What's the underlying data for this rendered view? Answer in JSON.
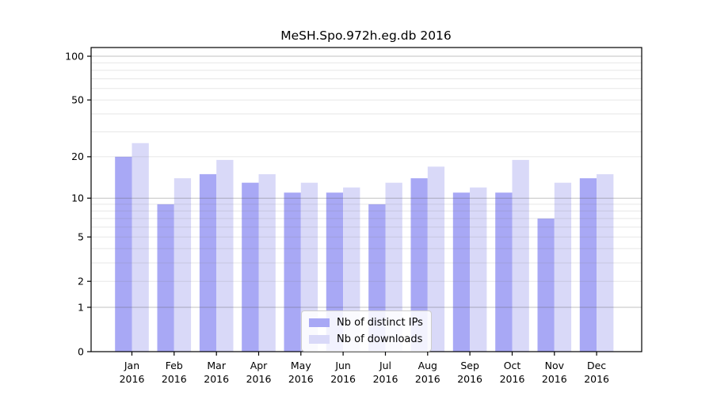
{
  "chart_data": {
    "type": "bar",
    "title": "MeSH.Spo.972h.eg.db 2016",
    "categories": [
      "Jan",
      "Feb",
      "Mar",
      "Apr",
      "May",
      "Jun",
      "Jul",
      "Aug",
      "Sep",
      "Oct",
      "Nov",
      "Dec"
    ],
    "category_year": "2016",
    "series": [
      {
        "name": "Nb of distinct IPs",
        "color": "#a8a8f5",
        "values": [
          20,
          9,
          15,
          13,
          11,
          11,
          9,
          14,
          11,
          11,
          7,
          14
        ]
      },
      {
        "name": "Nb of downloads",
        "color": "#d9d9f8",
        "values": [
          25,
          14,
          19,
          15,
          13,
          12,
          13,
          17,
          12,
          19,
          13,
          15
        ]
      }
    ],
    "xlabel": "",
    "ylabel": "",
    "yscale": "log1p",
    "ylim": [
      0,
      115
    ],
    "ytick_labels": [
      0,
      1,
      2,
      5,
      10,
      20,
      50,
      100
    ],
    "grid": {
      "minor_values": [
        2,
        3,
        4,
        5,
        6,
        7,
        8,
        9,
        20,
        30,
        40,
        50,
        60,
        70,
        80,
        90
      ],
      "major_values": [
        1,
        10,
        100
      ],
      "minor_color": "rgba(120,120,120,0.18)",
      "major_color": "rgba(90,90,90,0.38)"
    },
    "legend_position": "bottom-center",
    "axis_color": "#000000",
    "text_color": "#000000",
    "background_color": "#ffffff"
  }
}
